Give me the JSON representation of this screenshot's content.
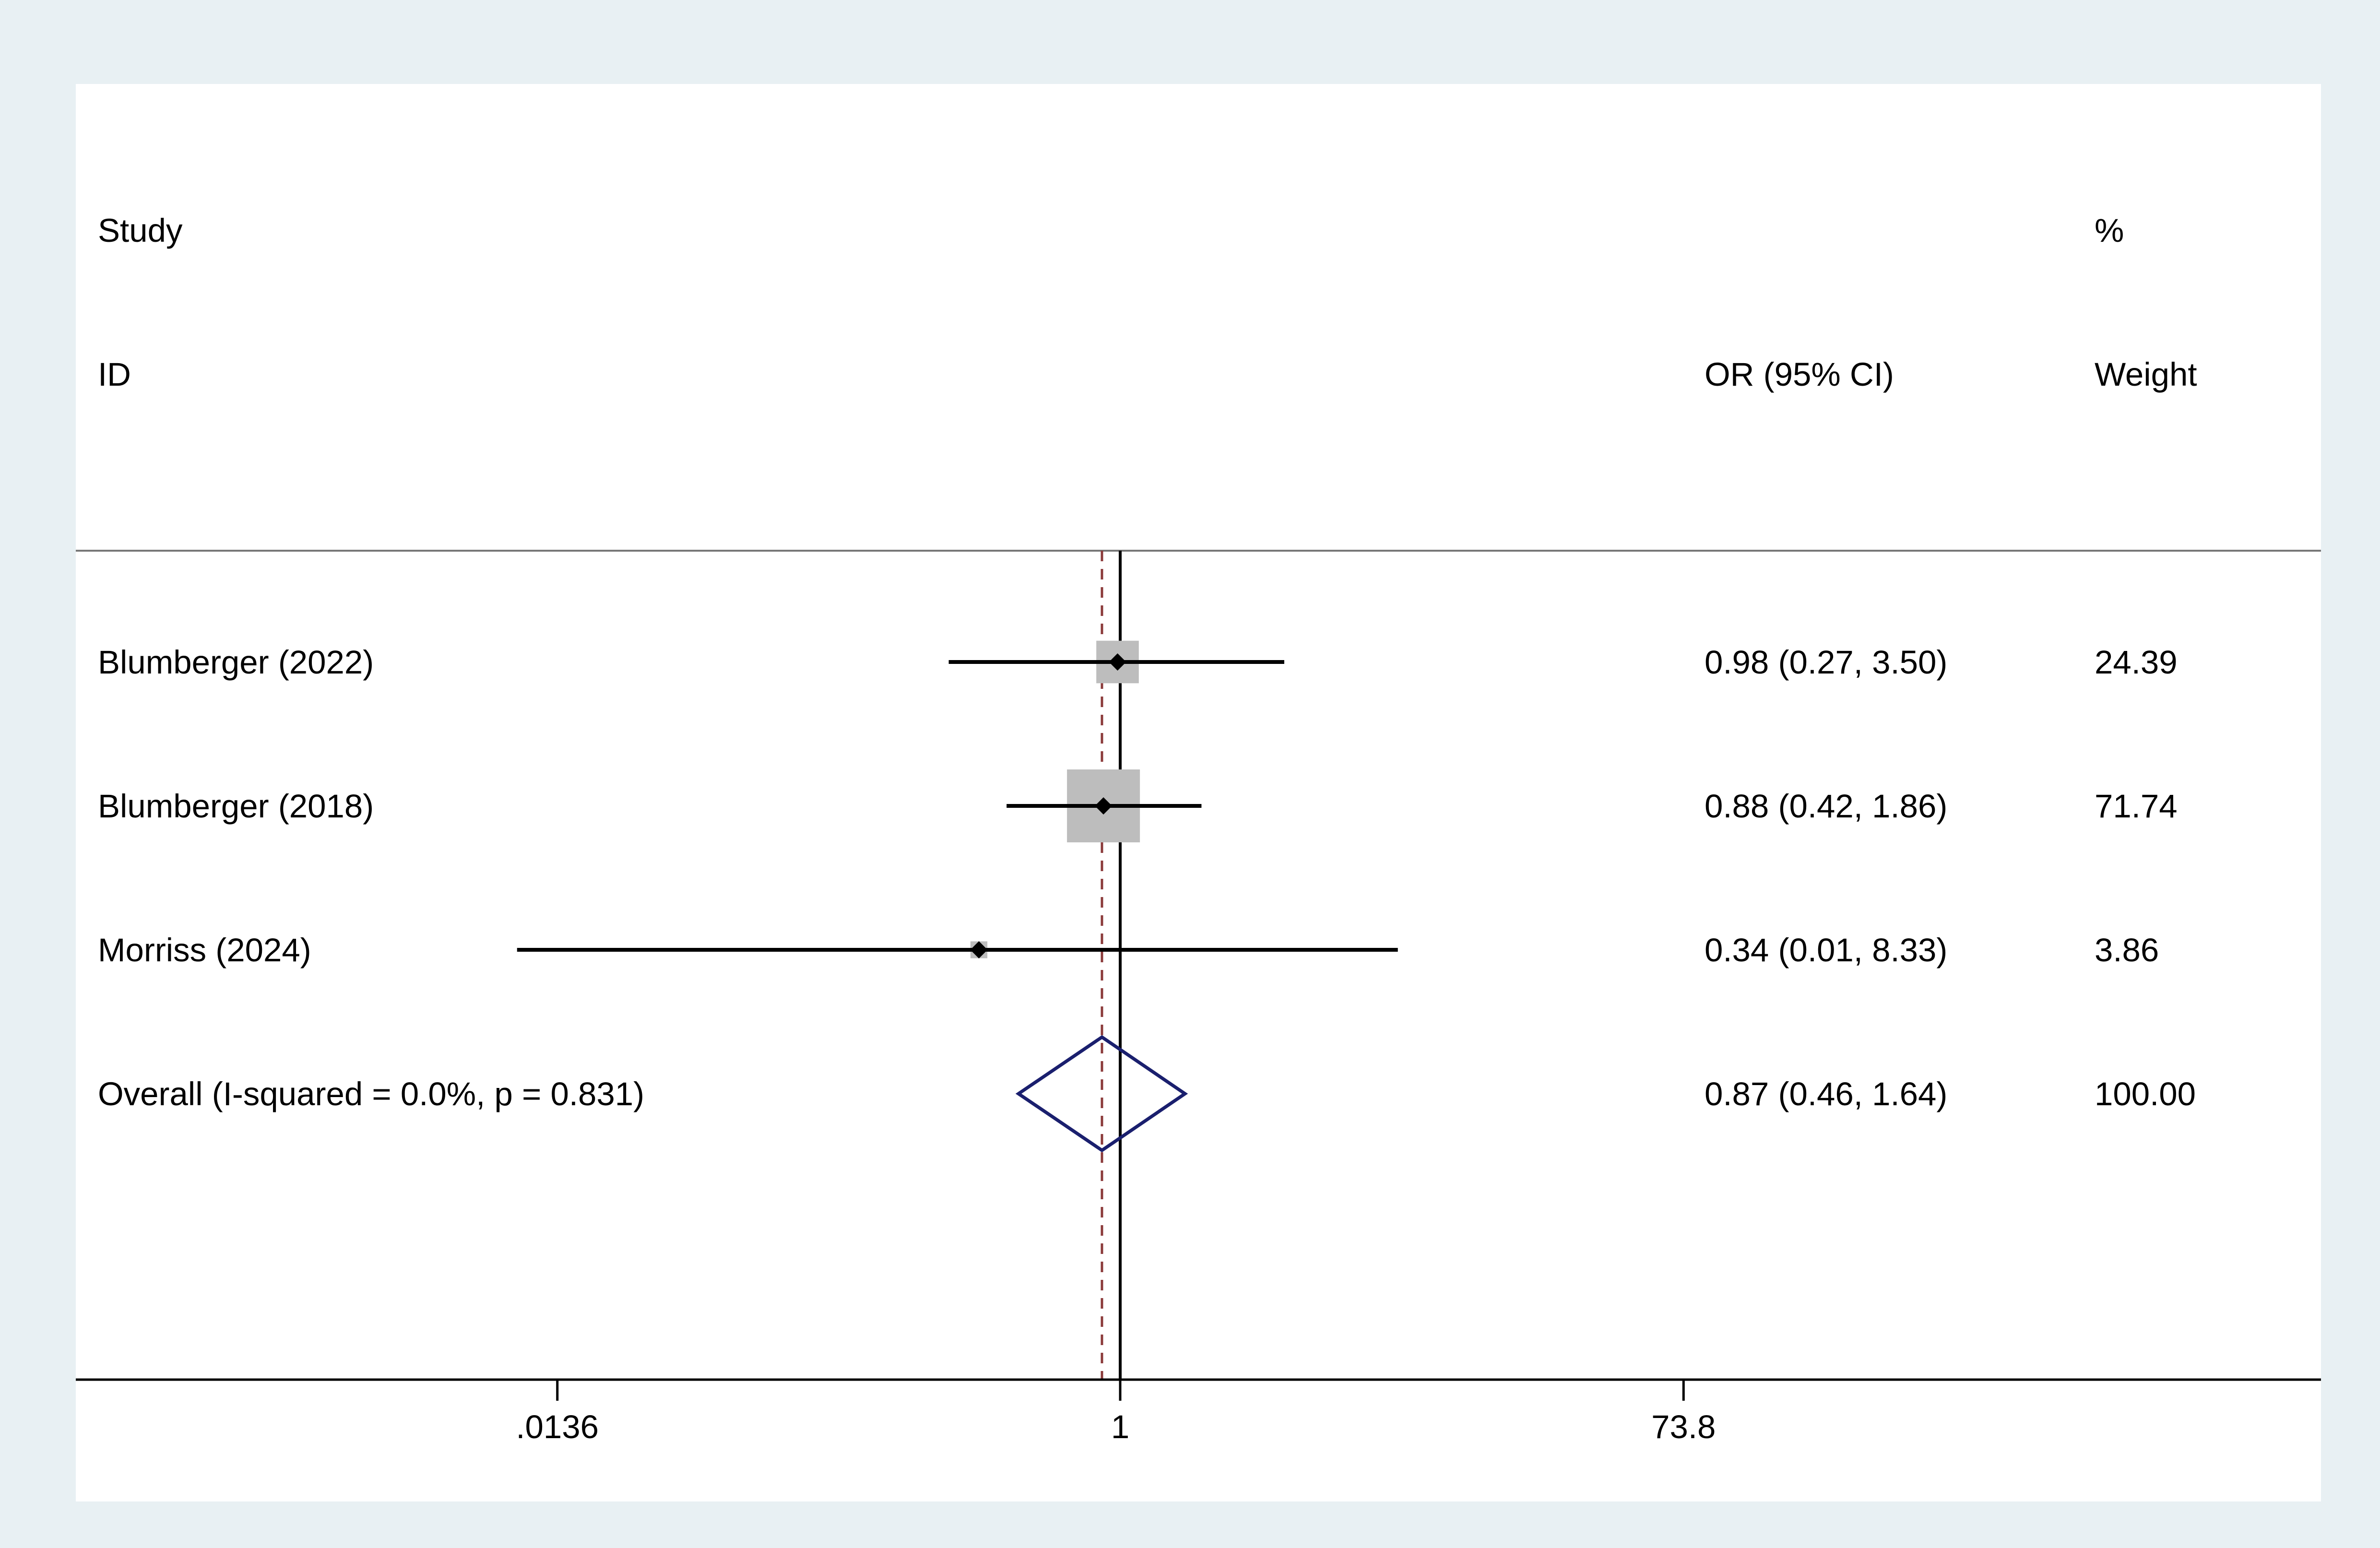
{
  "chart_data": {
    "type": "forest",
    "scale": "log",
    "header": {
      "study_line1": "Study",
      "study_line2": "ID",
      "effect_label": "OR (95% CI)",
      "weight_line1": "%",
      "weight_line2": "Weight"
    },
    "rows": [
      {
        "label": "Blumberger (2022)",
        "or": 0.98,
        "lower": 0.27,
        "upper": 3.5,
        "weight": 24.39,
        "ci_text": "0.98 (0.27, 3.50)",
        "weight_text": "24.39"
      },
      {
        "label": "Blumberger (2018)",
        "or": 0.88,
        "lower": 0.42,
        "upper": 1.86,
        "weight": 71.74,
        "ci_text": "0.88 (0.42, 1.86)",
        "weight_text": "71.74"
      },
      {
        "label": "Morriss (2024)",
        "or": 0.34,
        "lower": 0.01,
        "upper": 8.33,
        "weight": 3.86,
        "ci_text": "0.34 (0.01, 8.33)",
        "weight_text": "3.86"
      }
    ],
    "overall": {
      "label": "Overall  (I-squared = 0.0%, p = 0.831)",
      "or": 0.87,
      "lower": 0.46,
      "upper": 1.64,
      "ci_text": "0.87 (0.46, 1.64)",
      "weight_text": "100.00"
    },
    "x_ticks": [
      {
        "value": 0.0136,
        "label": ".0136"
      },
      {
        "value": 1,
        "label": "1"
      },
      {
        "value": 73.8,
        "label": "73.8"
      }
    ],
    "null_line": 1,
    "colors": {
      "outer_background": "#e8f0f3",
      "plot_background": "#ffffff",
      "weight_box": "#bdbdbd",
      "ci_line": "#000000",
      "overall_diamond": "#1a1f6e",
      "overall_dashed_line": "#8b3a3a"
    }
  }
}
